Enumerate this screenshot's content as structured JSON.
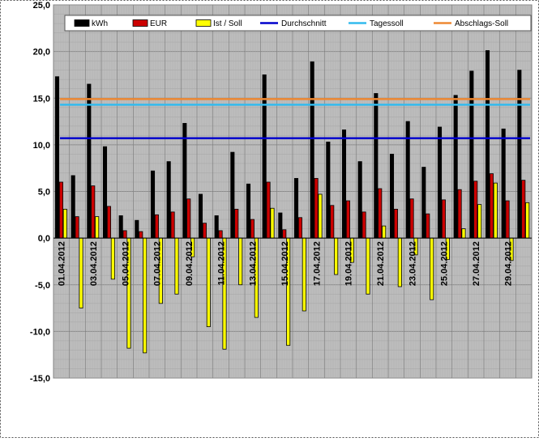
{
  "chart_data": {
    "type": "bar",
    "categories": [
      "01.04.2012",
      "02.04.2012",
      "03.04.2012",
      "04.04.2012",
      "05.04.2012",
      "06.04.2012",
      "07.04.2012",
      "08.04.2012",
      "09.04.2012",
      "10.04.2012",
      "11.04.2012",
      "12.04.2012",
      "13.04.2012",
      "14.04.2012",
      "15.04.2012",
      "16.04.2012",
      "17.04.2012",
      "18.04.2012",
      "19.04.2012",
      "20.04.2012",
      "21.04.2012",
      "22.04.2012",
      "23.04.2012",
      "24.04.2012",
      "25.04.2012",
      "26.04.2012",
      "27.04.2012",
      "28.04.2012",
      "29.04.2012",
      "30.04.2012"
    ],
    "x_tick_labels": [
      "01.04.2012",
      "03.04.2012",
      "05.04.2012",
      "07.04.2012",
      "09.04.2012",
      "11.04.2012",
      "13.04.2012",
      "15.04.2012",
      "17.04.2012",
      "19.04.2012",
      "21.04.2012",
      "23.04.2012",
      "25.04.2012",
      "27.04.2012",
      "29.04.2012"
    ],
    "y_ticks": [
      "25,0",
      "20,0",
      "15,0",
      "10,0",
      "5,0",
      "0,0",
      "-5,0",
      "-10,0",
      "-15,0"
    ],
    "ylim": [
      -15,
      25
    ],
    "grid": true,
    "legend_position": "top",
    "series": [
      {
        "name": "kWh",
        "kind": "bar",
        "color": "#000000",
        "values": [
          17.3,
          6.7,
          16.5,
          9.8,
          2.4,
          1.9,
          7.2,
          8.2,
          12.3,
          4.7,
          2.4,
          9.2,
          5.8,
          17.5,
          2.7,
          6.4,
          18.9,
          10.3,
          11.6,
          8.2,
          15.5,
          9.0,
          12.5,
          7.6,
          11.9,
          15.3,
          17.9,
          20.1,
          11.7,
          18.0
        ]
      },
      {
        "name": "EUR",
        "kind": "bar",
        "color": "#cc0000",
        "values": [
          6.0,
          2.3,
          5.6,
          3.4,
          0.8,
          0.7,
          2.5,
          2.8,
          4.2,
          1.6,
          0.8,
          3.1,
          2.0,
          6.0,
          0.9,
          2.2,
          6.4,
          3.5,
          4.0,
          2.8,
          5.3,
          3.1,
          4.2,
          2.6,
          4.1,
          5.2,
          6.1,
          6.9,
          4.0,
          6.2
        ]
      },
      {
        "name": "Ist / Soll",
        "kind": "bar",
        "color": "#ffff00",
        "values": [
          3.1,
          -7.5,
          2.3,
          -4.4,
          -11.8,
          -12.3,
          -7.0,
          -6.0,
          -2.0,
          -9.5,
          -11.9,
          -5.0,
          -8.5,
          3.2,
          -11.5,
          -7.8,
          4.7,
          -3.9,
          -2.6,
          -6.0,
          1.3,
          -5.2,
          -1.8,
          -6.6,
          -2.3,
          1.0,
          3.6,
          5.9,
          -2.4,
          3.8
        ]
      },
      {
        "name": "Durchschnitt",
        "kind": "line",
        "color": "#0000cc",
        "value": 10.7
      },
      {
        "name": "Tagessoll",
        "kind": "line",
        "color": "#33bbee",
        "value": 14.3
      },
      {
        "name": "Abschlags-Soll",
        "kind": "line",
        "color": "#ee8833",
        "value": 14.9
      }
    ]
  }
}
